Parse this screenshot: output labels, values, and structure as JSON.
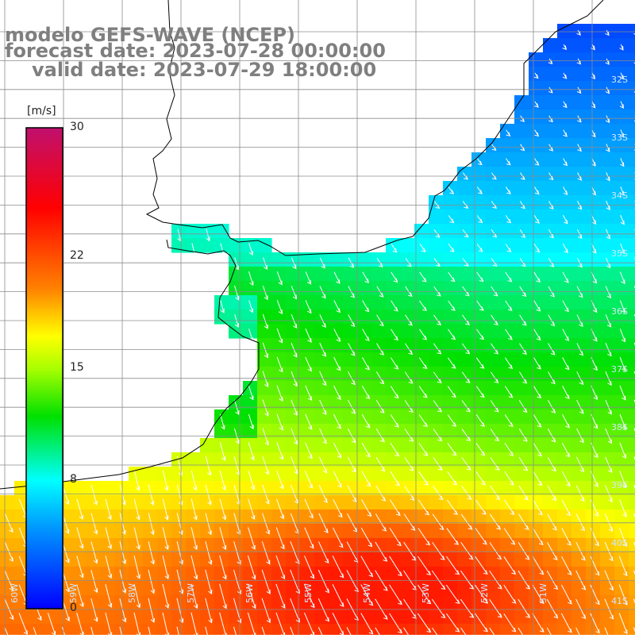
{
  "title": {
    "line1": "modelo GEFS-WAVE (NCEP)",
    "line2": "forecast date: 2023-07-28 00:00:00",
    "line3": "valid date: 2023-07-29 18:00:00"
  },
  "colorbar": {
    "unit": "[m/s]",
    "min": 0,
    "max": 30,
    "tick_labels": [
      "30",
      "22",
      "15",
      "8",
      "0"
    ],
    "tick_values": [
      30,
      22,
      15,
      8,
      0
    ],
    "stops": [
      {
        "value": 0,
        "color": "#0000ff"
      },
      {
        "value": 5,
        "color": "#0096ff"
      },
      {
        "value": 8,
        "color": "#00ffff"
      },
      {
        "value": 12,
        "color": "#00e000"
      },
      {
        "value": 15,
        "color": "#aaff00"
      },
      {
        "value": 17,
        "color": "#ffff00"
      },
      {
        "value": 20,
        "color": "#ff8000"
      },
      {
        "value": 25,
        "color": "#ff0000"
      },
      {
        "value": 30,
        "color": "#c0106e"
      }
    ]
  },
  "map": {
    "lon_range": [
      -60,
      -50
    ],
    "lat_range": [
      -41,
      -31
    ],
    "lon_labels": [
      "60W",
      "59W",
      "58W",
      "57W",
      "56W",
      "55W",
      "54W",
      "53W",
      "52W",
      "51W"
    ],
    "lat_labels": [
      "32S",
      "33S",
      "34S",
      "35S",
      "36S",
      "37S",
      "38S",
      "39S",
      "40S",
      "41S"
    ],
    "colors": {
      "land": "#ffffff",
      "coast": "#000000",
      "grid": "#8c8c8c",
      "arrow": "#ffffff",
      "label": "#cfe8ff"
    }
  }
}
